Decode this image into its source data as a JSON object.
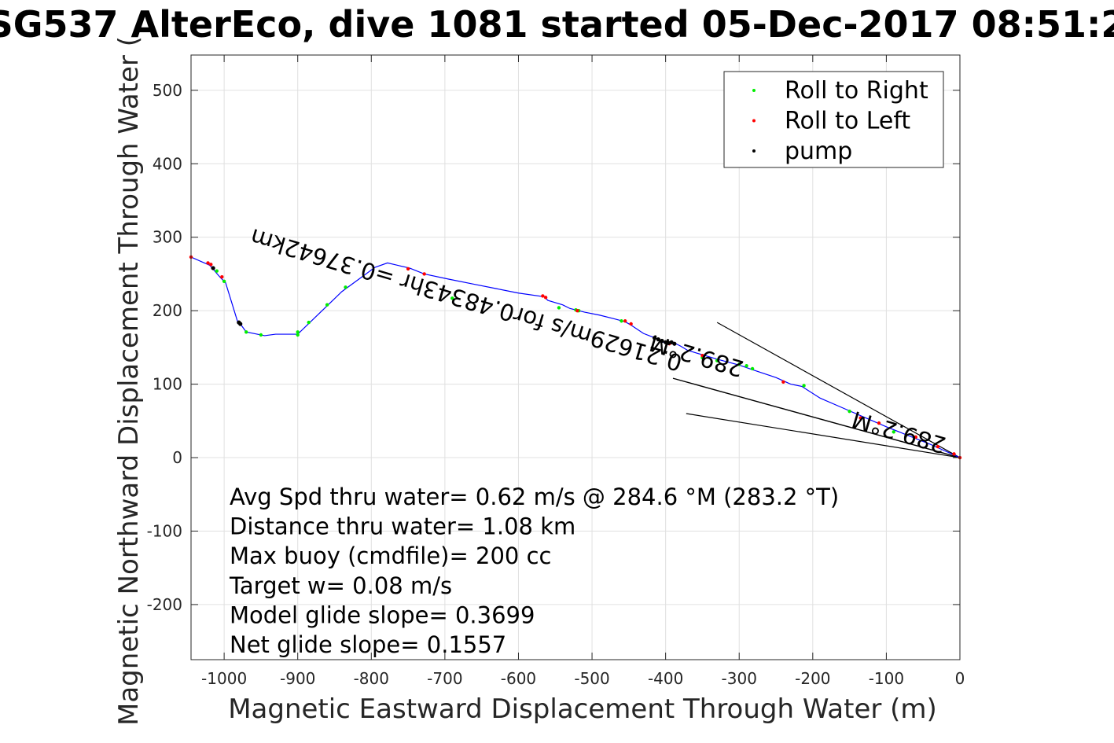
{
  "chart_data": {
    "type": "line",
    "title": "SG537 AlterEco, dive 1081 started 05-Dec-2017 08:51:2",
    "xlabel": "Magnetic Eastward Displacement Through Water (m)",
    "ylabel": "Magnetic Northward Displacement Through Water (",
    "xlim": [
      -1045,
      0
    ],
    "ylim": [
      -275,
      548
    ],
    "xticks": [
      -1000,
      -900,
      -800,
      -700,
      -600,
      -500,
      -400,
      -300,
      -200,
      -100,
      0
    ],
    "yticks": [
      -200,
      -100,
      0,
      100,
      200,
      300,
      400,
      500
    ],
    "grid": true,
    "legend_position": "top-right",
    "colors": {
      "track": "#0000ff",
      "roll_right": "#00ee00",
      "roll_left": "#ff0000",
      "pump": "#000000"
    },
    "track": {
      "x": [
        -1045,
        -1020,
        -1016,
        -1012,
        -1005,
        -998,
        -982,
        -978,
        -970,
        -945,
        -930,
        -915,
        -900,
        -870,
        -840,
        -795,
        -778,
        -748,
        -728,
        -695,
        -660,
        -630,
        -600,
        -565,
        -560,
        -540,
        -530,
        -510,
        -490,
        -470,
        -455,
        -448,
        -430,
        -412,
        -405,
        -398,
        -390,
        -380,
        -370,
        -350,
        -330,
        -300,
        -280,
        -250,
        -230,
        -215,
        -190,
        -160,
        -130,
        -100,
        -70,
        -40,
        -20,
        0
      ],
      "y": [
        273,
        262,
        258,
        253,
        245,
        238,
        186,
        182,
        171,
        166,
        168,
        168,
        168,
        197,
        226,
        259,
        265,
        258,
        250,
        243,
        236,
        230,
        224,
        219,
        214,
        208,
        203,
        198,
        194,
        189,
        185,
        181,
        169,
        162,
        158,
        155,
        157,
        152,
        146,
        140,
        134,
        126,
        119,
        109,
        100,
        97,
        81,
        68,
        55,
        42,
        30,
        18,
        9,
        0
      ]
    },
    "series": [
      {
        "name": "Roll to Right",
        "x": [
          -1010,
          -1000,
          -970,
          -950,
          -900,
          -900,
          -885,
          -860,
          -835,
          -690,
          -545,
          -522,
          -518,
          -460,
          -350,
          -330,
          -300,
          -290,
          -282,
          -212,
          -150,
          -90
        ],
        "y": [
          254,
          240,
          171,
          167,
          167,
          171,
          184,
          208,
          232,
          217,
          204,
          201,
          200,
          186,
          136,
          132,
          127,
          125,
          121,
          98,
          63,
          35
        ]
      },
      {
        "name": "Roll to Left",
        "x": [
          -1045,
          -1022,
          -1018,
          -1003,
          -750,
          -728,
          -567,
          -563,
          -520,
          -455,
          -447,
          -395,
          -350,
          -240,
          -135,
          -110,
          -60,
          -30,
          -8,
          0
        ],
        "y": [
          273,
          265,
          263,
          246,
          257,
          250,
          220,
          218,
          200,
          186,
          182,
          155,
          139,
          103,
          54,
          47,
          28,
          15,
          5,
          0
        ]
      },
      {
        "name": "pump",
        "x": [
          -1015,
          -980,
          -978,
          -415,
          -410,
          -405,
          -400,
          -396,
          -392,
          -388
        ],
        "y": [
          258,
          184,
          182,
          163,
          161,
          159,
          157,
          156,
          157,
          155
        ]
      }
    ],
    "lines": {
      "net_track": {
        "x": [
          -390,
          0
        ],
        "y": [
          108,
          0
        ]
      },
      "bracket_upper": {
        "x": [
          -330,
          0
        ],
        "y": [
          184,
          0
        ]
      },
      "bracket_lower": {
        "x": [
          -372,
          0
        ],
        "y": [
          60,
          0
        ]
      }
    },
    "annotations": {
      "rotated_labels": [
        {
          "text": "0.21629m/s for0.48343hr =0.37642km",
          "x": -668,
          "y": 225,
          "rotation_deg": 196.5
        },
        {
          "text": "289.2°M",
          "x": -355,
          "y": 149,
          "rotation_deg": 196.5
        },
        {
          "text": "289.2°M",
          "x": -80,
          "y": 45,
          "rotation_deg": 196.5
        }
      ],
      "text_lines": [
        "Avg Spd thru water=  0.62 m/s @ 284.6 °M (283.2 °T)",
        "Distance thru water=  1.08 km",
        "Max buoy (cmdfile)= 200 cc",
        "Target w= 0.08 m/s",
        "Model glide slope= 0.3699",
        "Net glide slope= 0.1557"
      ]
    }
  }
}
